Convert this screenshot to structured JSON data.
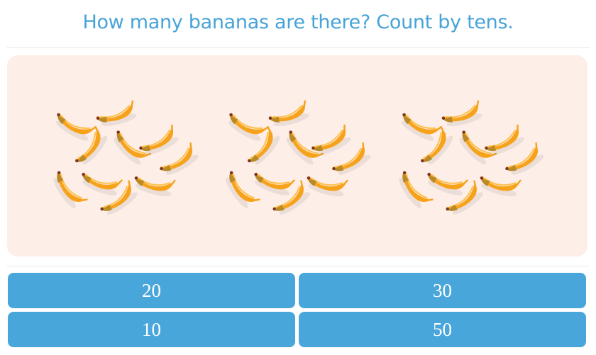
{
  "question": "How many bananas are there? Count by tens.",
  "picture": {
    "groups": 3,
    "bananas_per_group": 10,
    "icon": "banana-icon",
    "background": "#fdeee8"
  },
  "answers": [
    {
      "label": "20"
    },
    {
      "label": "30"
    },
    {
      "label": "10"
    },
    {
      "label": "50"
    }
  ],
  "colors": {
    "accent": "#49a6db",
    "title": "#47a3d8",
    "banana": "#f7a21b"
  }
}
